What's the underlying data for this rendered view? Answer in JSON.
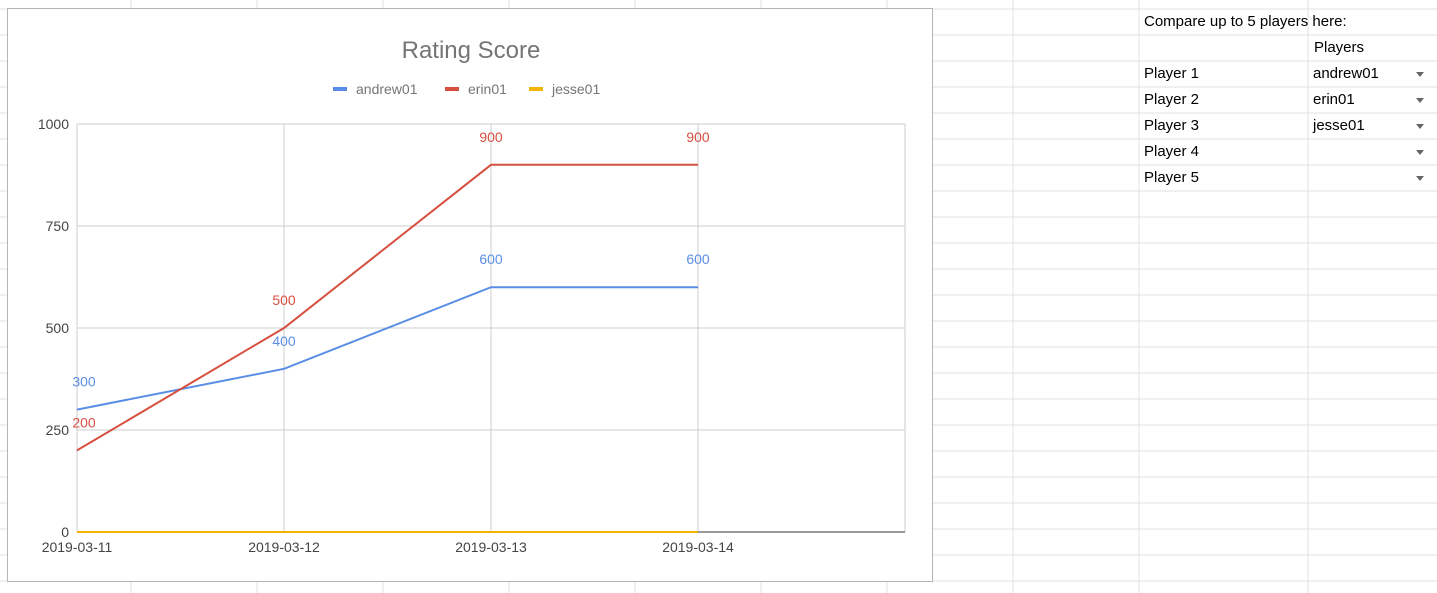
{
  "sheet": {
    "prompt": "Compare up to 5 players here:",
    "players_header": "Players",
    "rows": [
      {
        "label": "Player 1",
        "value": "andrew01"
      },
      {
        "label": "Player 2",
        "value": "erin01"
      },
      {
        "label": "Player 3",
        "value": "jesse01"
      },
      {
        "label": "Player 4",
        "value": ""
      },
      {
        "label": "Player 5",
        "value": ""
      }
    ]
  },
  "chart_data": {
    "type": "line",
    "title": "Rating Score",
    "xlabel": "",
    "ylabel": "",
    "categories": [
      "2019-03-11",
      "2019-03-12",
      "2019-03-13",
      "2019-03-14"
    ],
    "ylim": [
      0,
      1000
    ],
    "yticks": [
      0,
      250,
      500,
      750,
      1000
    ],
    "grid": true,
    "legend": "top",
    "series": [
      {
        "name": "andrew01",
        "color": "#5a8ee6",
        "values": [
          300,
          400,
          600,
          600
        ]
      },
      {
        "name": "erin01",
        "color": "#d64f3f",
        "values": [
          200,
          500,
          900,
          900
        ]
      },
      {
        "name": "jesse01",
        "color": "#f0b400",
        "values": [
          0,
          0,
          0,
          0
        ]
      }
    ],
    "data_labels": [
      {
        "series": "andrew01",
        "values": [
          300,
          400,
          600,
          600
        ]
      },
      {
        "series": "erin01",
        "values": [
          200,
          500,
          900,
          900
        ]
      }
    ]
  }
}
